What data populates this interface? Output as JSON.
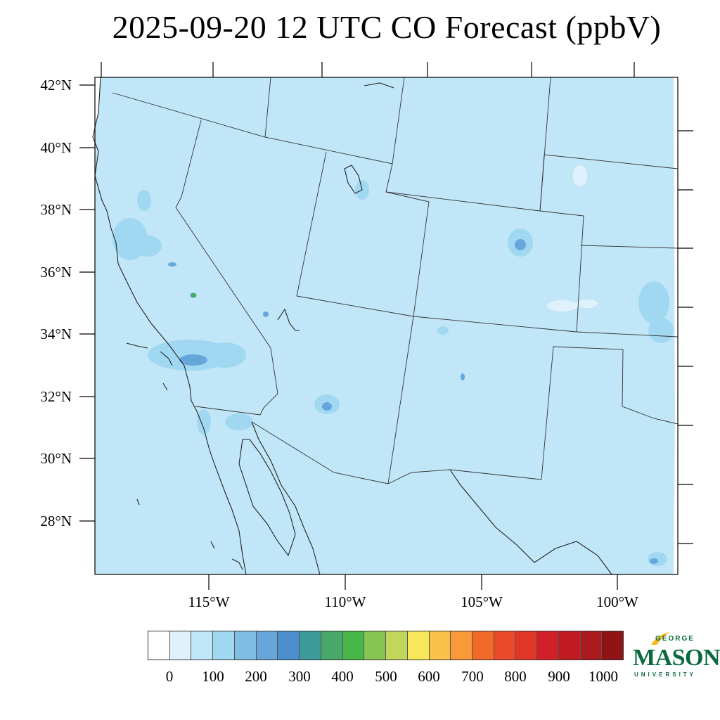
{
  "title": "2025-09-20 12 UTC CO Forecast (ppbV)",
  "map": {
    "background_color": "#c1e6f7",
    "latitude_labels": [
      "42°N",
      "40°N",
      "38°N",
      "36°N",
      "34°N",
      "32°N",
      "30°N",
      "28°N"
    ],
    "longitude_labels": [
      "115°W",
      "110°W",
      "105°W",
      "100°W"
    ]
  },
  "colorbar": {
    "colors": [
      "#ffffff",
      "#dff2fb",
      "#c1e6f7",
      "#a0d8f2",
      "#82bde5",
      "#66a6db",
      "#4a8ecb",
      "#3f9a9a",
      "#47a86a",
      "#47b848",
      "#86c454",
      "#c3d65c",
      "#f7e85a",
      "#f9c24a",
      "#f89a3a",
      "#f26a2a",
      "#ea4a2a",
      "#e03628",
      "#d2202a",
      "#c01a22",
      "#aa1a1e",
      "#8f1416"
    ],
    "labels": [
      "0",
      "100",
      "200",
      "300",
      "400",
      "500",
      "600",
      "700",
      "800",
      "900",
      "1000"
    ]
  },
  "logo": {
    "top_text": "GEORGE",
    "main_text": "MASON",
    "bottom_text": "UNIVERSITY",
    "color": "#0a6a3c",
    "accent_color": "#f4b812"
  }
}
